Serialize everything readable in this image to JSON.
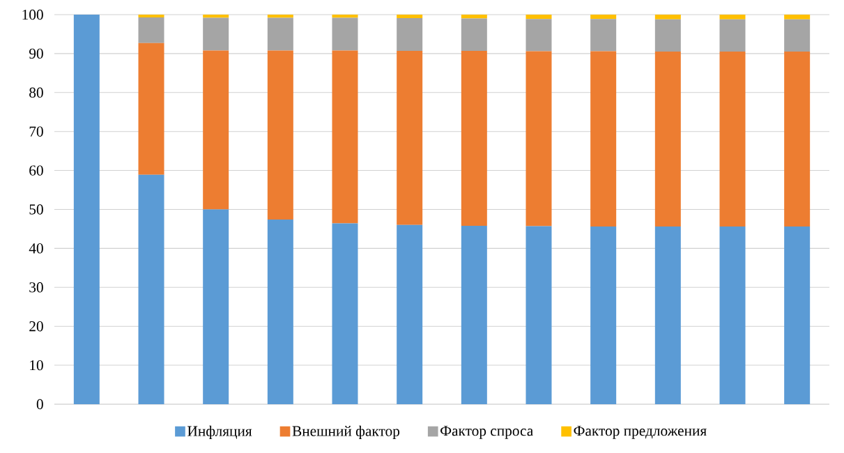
{
  "chart_data": {
    "type": "bar",
    "stacked": true,
    "categories": [
      null,
      null,
      null,
      null,
      null,
      null,
      null,
      null,
      null,
      null,
      null,
      null
    ],
    "series": [
      {
        "name": "Инфляция",
        "color": "#5b9bd5",
        "values": [
          100,
          58.9,
          50.0,
          47.4,
          46.4,
          46.0,
          45.8,
          45.7,
          45.6,
          45.6,
          45.6,
          45.6
        ]
      },
      {
        "name": "Внешний фактор",
        "color": "#ed7d31",
        "values": [
          0,
          33.8,
          40.8,
          43.4,
          44.4,
          44.7,
          44.9,
          44.9,
          45.0,
          44.9,
          44.9,
          44.9
        ]
      },
      {
        "name": "Фактор спроса",
        "color": "#a5a5a5",
        "values": [
          0,
          6.6,
          8.4,
          8.4,
          8.4,
          8.4,
          8.3,
          8.3,
          8.3,
          8.3,
          8.3,
          8.3
        ]
      },
      {
        "name": "Фактор предложения",
        "color": "#ffc000",
        "values": [
          0,
          0.7,
          0.8,
          0.8,
          0.8,
          0.9,
          1.0,
          1.1,
          1.1,
          1.2,
          1.2,
          1.2
        ]
      }
    ],
    "ylim": [
      0,
      100
    ],
    "yticks": [
      0,
      10,
      20,
      30,
      40,
      50,
      60,
      70,
      80,
      90,
      100
    ],
    "grid": "y",
    "legend": "bottom"
  }
}
